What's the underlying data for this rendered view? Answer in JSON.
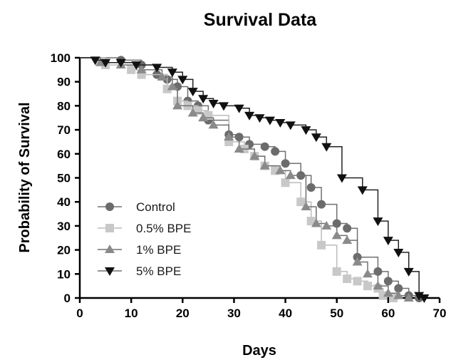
{
  "chart_data": {
    "type": "line",
    "title": "Survival Data",
    "xlabel": "Days",
    "ylabel": "Probability of Survival",
    "xlim": [
      0,
      70
    ],
    "ylim": [
      0,
      100
    ],
    "xticks": [
      0,
      10,
      20,
      30,
      40,
      50,
      60,
      70
    ],
    "yticks": [
      0,
      10,
      20,
      30,
      40,
      50,
      60,
      70,
      80,
      90,
      100
    ],
    "step_curve": true,
    "grid": false,
    "legend_position": "bottom-left",
    "series": [
      {
        "name": "Control",
        "marker": "circle",
        "color": "#6b6b6b",
        "points": [
          [
            0,
            100
          ],
          [
            8,
            99
          ],
          [
            12,
            97
          ],
          [
            15,
            93
          ],
          [
            17,
            91
          ],
          [
            19,
            88
          ],
          [
            21,
            82
          ],
          [
            23,
            80
          ],
          [
            25,
            74
          ],
          [
            29,
            68
          ],
          [
            31,
            67
          ],
          [
            33,
            64
          ],
          [
            36,
            63
          ],
          [
            38,
            61
          ],
          [
            40,
            56
          ],
          [
            43,
            51
          ],
          [
            45,
            46
          ],
          [
            47,
            39
          ],
          [
            50,
            31
          ],
          [
            52,
            29
          ],
          [
            54,
            17
          ],
          [
            58,
            11
          ],
          [
            60,
            7
          ],
          [
            62,
            4
          ],
          [
            64,
            1
          ],
          [
            66,
            0
          ]
        ]
      },
      {
        "name": "0.5% BPE",
        "marker": "square",
        "color": "#c8c8c8",
        "points": [
          [
            0,
            100
          ],
          [
            5,
            97
          ],
          [
            10,
            95
          ],
          [
            12,
            93
          ],
          [
            17,
            87
          ],
          [
            19,
            82
          ],
          [
            21,
            80
          ],
          [
            23,
            78
          ],
          [
            25,
            76
          ],
          [
            29,
            65
          ],
          [
            32,
            62
          ],
          [
            34,
            59
          ],
          [
            36,
            55
          ],
          [
            38,
            53
          ],
          [
            40,
            48
          ],
          [
            43,
            40
          ],
          [
            45,
            32
          ],
          [
            47,
            22
          ],
          [
            50,
            11
          ],
          [
            52,
            8
          ],
          [
            54,
            7
          ],
          [
            56,
            5
          ],
          [
            58,
            4
          ],
          [
            59,
            1
          ],
          [
            61,
            0
          ]
        ]
      },
      {
        "name": "1% BPE",
        "marker": "triangle-up",
        "color": "#8a8a8a",
        "points": [
          [
            0,
            100
          ],
          [
            4,
            98
          ],
          [
            8,
            97
          ],
          [
            12,
            95
          ],
          [
            16,
            92
          ],
          [
            18,
            88
          ],
          [
            19,
            80
          ],
          [
            22,
            77
          ],
          [
            24,
            75
          ],
          [
            26,
            72
          ],
          [
            29,
            67
          ],
          [
            31,
            62
          ],
          [
            34,
            59
          ],
          [
            36,
            55
          ],
          [
            39,
            53
          ],
          [
            41,
            51
          ],
          [
            44,
            38
          ],
          [
            46,
            31
          ],
          [
            48,
            30
          ],
          [
            50,
            26
          ],
          [
            52,
            24
          ],
          [
            54,
            15
          ],
          [
            56,
            10
          ],
          [
            58,
            5
          ],
          [
            60,
            2
          ],
          [
            62,
            1
          ],
          [
            64,
            0
          ]
        ]
      },
      {
        "name": "5% BPE",
        "marker": "triangle-down",
        "color": "#111111",
        "points": [
          [
            0,
            100
          ],
          [
            3,
            99
          ],
          [
            5,
            98
          ],
          [
            8,
            98
          ],
          [
            11,
            97
          ],
          [
            15,
            96
          ],
          [
            18,
            94
          ],
          [
            20,
            91
          ],
          [
            22,
            86
          ],
          [
            24,
            83
          ],
          [
            26,
            81
          ],
          [
            28,
            80
          ],
          [
            31,
            79
          ],
          [
            33,
            76
          ],
          [
            35,
            75
          ],
          [
            37,
            74
          ],
          [
            39,
            73
          ],
          [
            41,
            72
          ],
          [
            44,
            70
          ],
          [
            46,
            67
          ],
          [
            48,
            63
          ],
          [
            51,
            50
          ],
          [
            55,
            45
          ],
          [
            58,
            32
          ],
          [
            60,
            24
          ],
          [
            62,
            19
          ],
          [
            64,
            11
          ],
          [
            66,
            1
          ],
          [
            67,
            0
          ]
        ]
      }
    ]
  }
}
